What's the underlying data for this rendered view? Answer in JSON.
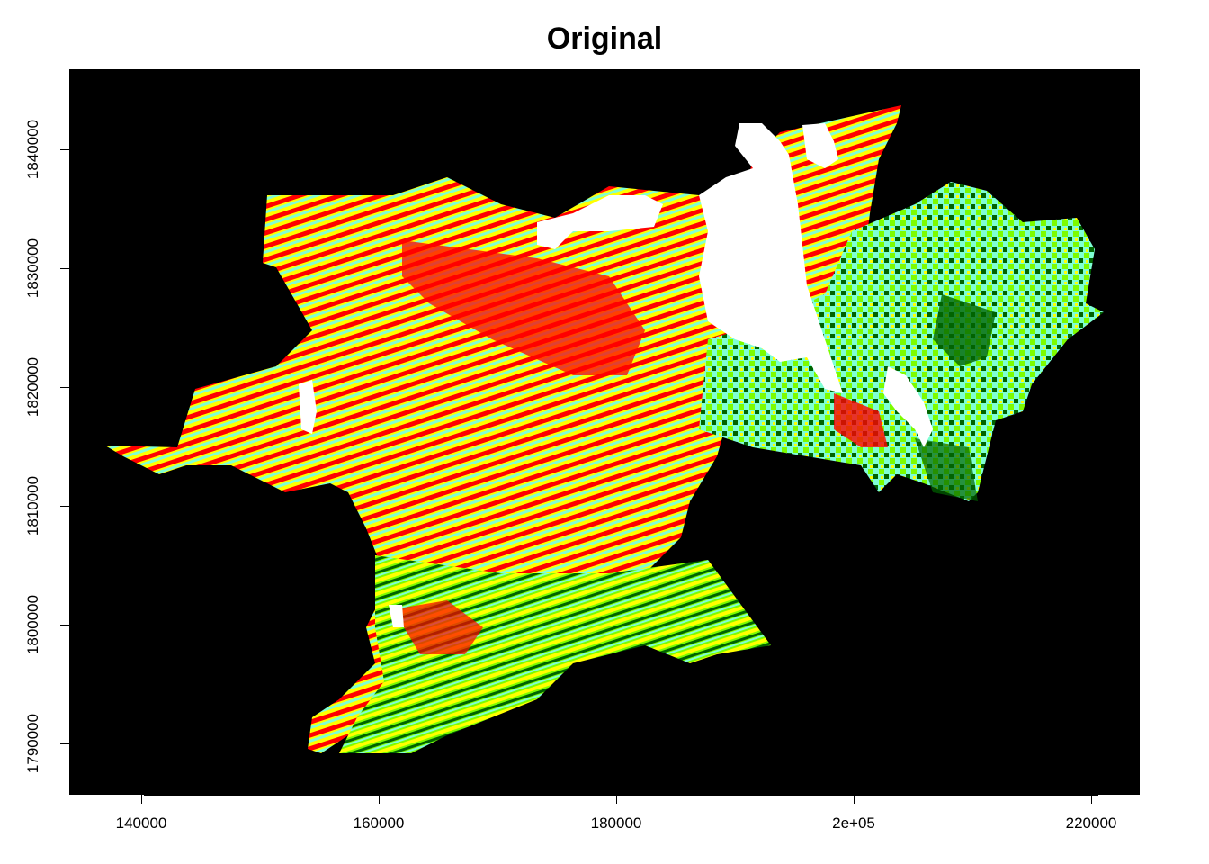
{
  "title": "Original",
  "axes": {
    "x_ticks": [
      "140000",
      "160000",
      "180000",
      "2e+05",
      "220000"
    ],
    "y_ticks": [
      "1790000",
      "1800000",
      "1810000",
      "1820000",
      "1830000",
      "1840000"
    ],
    "x_range": [
      134000,
      224000
    ],
    "y_range": [
      1785000,
      1846500
    ]
  },
  "legend": {
    "colors": {
      "background": "#000000",
      "water": "#ffffff",
      "class_red": "#ff0000",
      "class_yellow": "#ffff00",
      "class_lightgreen": "#7fffd4",
      "class_darkgreen": "#006400",
      "class_green": "#7cfc00"
    }
  }
}
